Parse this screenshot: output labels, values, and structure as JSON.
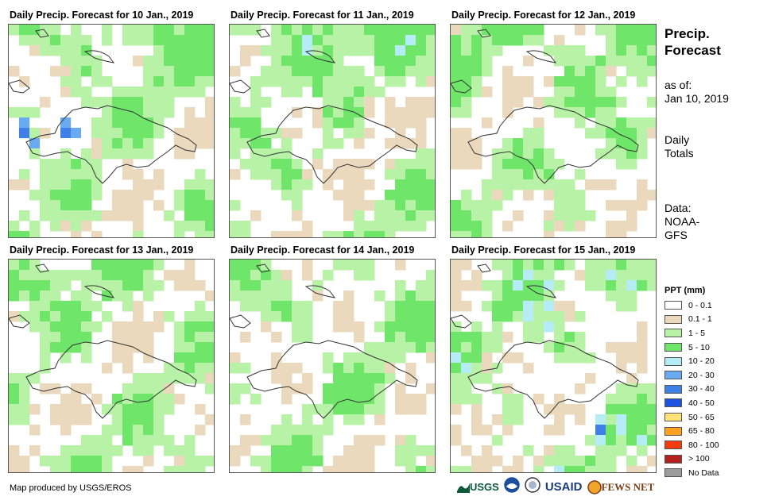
{
  "panels": [
    {
      "title": "Daily Precip. Forecast for 10 Jan., 2019"
    },
    {
      "title": "Daily Precip. Forecast for 11 Jan., 2019"
    },
    {
      "title": "Daily Precip. Forecast for 12 Jan., 2019"
    },
    {
      "title": "Daily Precip. Forecast for 13 Jan., 2019"
    },
    {
      "title": "Daily Precip. Forecast for 14 Jan., 2019"
    },
    {
      "title": "Daily Precip. Forecast for 15 Jan., 2019"
    }
  ],
  "sidebar": {
    "title_line1": "Precip.",
    "title_line2": "Forecast",
    "asof_label": "as of:",
    "asof_date": "Jan 10, 2019",
    "totals_line1": "Daily",
    "totals_line2": "Totals",
    "data_line1": "Data:",
    "data_line2": "NOAA-",
    "data_line3": "GFS"
  },
  "legend": {
    "title": "PPT (mm)",
    "items": [
      {
        "label": "0 - 0.1",
        "color": "#ffffff"
      },
      {
        "label": "0.1 - 1",
        "color": "#ead9bd"
      },
      {
        "label": "1 - 5",
        "color": "#b8f2a6"
      },
      {
        "label": "5 - 10",
        "color": "#6fe66a"
      },
      {
        "label": "10 - 20",
        "color": "#b6ecf6"
      },
      {
        "label": "20 - 30",
        "color": "#6aaaf0"
      },
      {
        "label": "30 - 40",
        "color": "#3f7fe8"
      },
      {
        "label": "40 - 50",
        "color": "#1d52e0"
      },
      {
        "label": "50 - 65",
        "color": "#ffe37a"
      },
      {
        "label": "65 - 80",
        "color": "#ffa21e"
      },
      {
        "label": "80 - 100",
        "color": "#f23c10"
      },
      {
        "label": "> 100",
        "color": "#b2211e"
      },
      {
        "label": "No Data",
        "color": "#9c9c9c"
      }
    ]
  },
  "footer": {
    "credit": "Map produced by USGS/EROS"
  },
  "logos": {
    "usgs": "USGS",
    "usaid": "USAID",
    "fewsnet": "FEWS NET"
  }
}
